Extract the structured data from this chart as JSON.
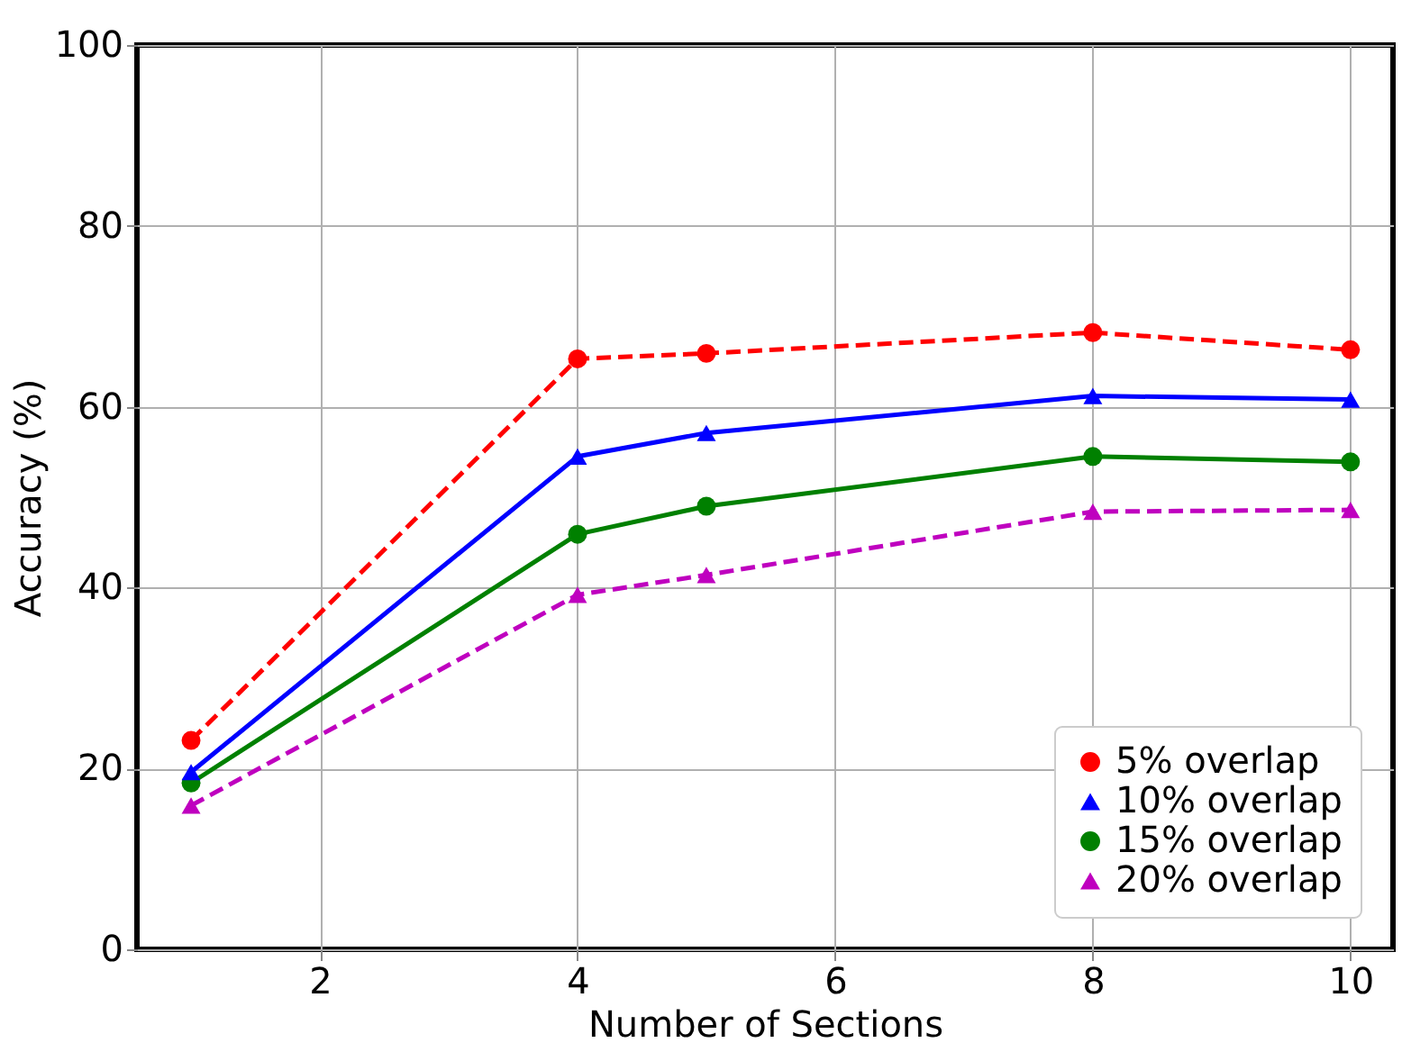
{
  "chart_data": {
    "type": "line",
    "xlabel": "Number of Sections",
    "ylabel": "Accuracy (%)",
    "xlim": [
      0.58,
      10.33
    ],
    "xticks": [
      2,
      4,
      6,
      8,
      10
    ],
    "ylim": [
      0,
      100
    ],
    "yticks": [
      0,
      20,
      40,
      60,
      80,
      100
    ],
    "grid": true,
    "legend": "bottom right",
    "series": [
      {
        "name": "5% overlap",
        "color": "#ff0000",
        "marker": "circle",
        "line_style": "dashed",
        "x": [
          1,
          4,
          5,
          8,
          10
        ],
        "values": [
          23.1,
          65.3,
          65.9,
          68.2,
          66.3
        ]
      },
      {
        "name": "10% overlap",
        "color": "#0000ff",
        "marker": "triangle",
        "line_style": "solid",
        "x": [
          1,
          4,
          5,
          8,
          10
        ],
        "values": [
          19.6,
          54.5,
          57.1,
          61.2,
          60.8
        ]
      },
      {
        "name": "15% overlap",
        "color": "#008000",
        "marker": "circle",
        "line_style": "solid",
        "x": [
          1,
          4,
          5,
          8,
          10
        ],
        "values": [
          18.4,
          45.9,
          49.0,
          54.5,
          53.9
        ]
      },
      {
        "name": "20% overlap",
        "color": "#bf00bf",
        "marker": "triangle",
        "line_style": "dashed",
        "x": [
          1,
          4,
          5,
          8,
          10
        ],
        "values": [
          15.9,
          39.2,
          41.4,
          48.4,
          48.6
        ]
      }
    ]
  }
}
